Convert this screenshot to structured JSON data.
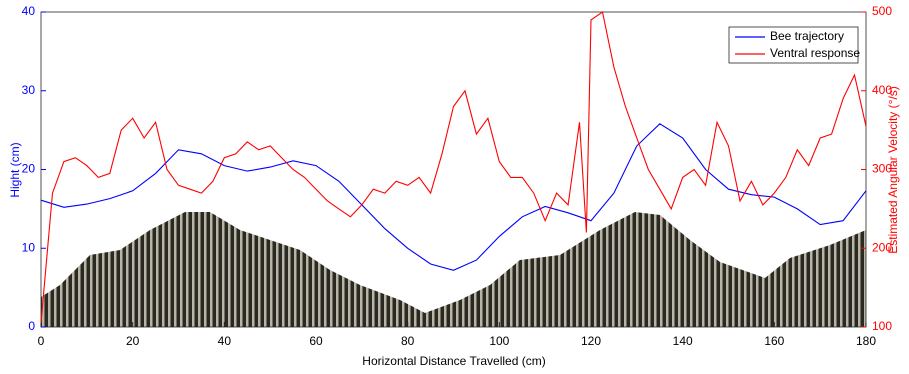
{
  "chart_data": {
    "type": "line",
    "xlabel": "Horizontal Distance Travelled (cm)",
    "ylabel": "Hight (cm)",
    "y2label": "Estimated Angular Velocity (°/s)",
    "xlim": [
      0,
      180
    ],
    "xticks": [
      0,
      20,
      40,
      60,
      80,
      100,
      120,
      140,
      160,
      180
    ],
    "ylim": [
      0,
      40
    ],
    "yticks": [
      0,
      10,
      20,
      30,
      40
    ],
    "y2lim": [
      100,
      500
    ],
    "y2ticks": [
      100,
      200,
      300,
      400,
      500
    ],
    "legend": "upper right",
    "series": [
      {
        "name": "Bee trajectory",
        "color": "#0000ff",
        "x": [
          0,
          5,
          10,
          15,
          20,
          25,
          30,
          35,
          40,
          45,
          50,
          55,
          60,
          65,
          70,
          75,
          80,
          85,
          90,
          95,
          100,
          105,
          110,
          115,
          120,
          125,
          130,
          135,
          140,
          145,
          150,
          155,
          160,
          165,
          170,
          175,
          180
        ],
        "values": [
          16.1,
          15.2,
          15.6,
          16.3,
          17.3,
          19.5,
          22.5,
          22,
          20.5,
          19.8,
          20.3,
          21.1,
          20.5,
          18.5,
          15.5,
          12.5,
          10,
          8,
          7.2,
          8.5,
          11.5,
          14,
          15.3,
          14.5,
          13.5,
          17,
          23,
          25.8,
          24,
          20,
          17.5,
          16.8,
          16.5,
          15,
          13,
          13.5,
          17.3
        ]
      },
      {
        "name": "Ventral response",
        "color": "#ff0000",
        "axis": "y2",
        "x": [
          0,
          2.5,
          5,
          7.5,
          10,
          12.5,
          15,
          17.5,
          20,
          22.5,
          25,
          27.5,
          30,
          32.5,
          35,
          37.5,
          40,
          42.5,
          45,
          47.5,
          50,
          52.5,
          55,
          57.5,
          60,
          62.5,
          65,
          67.5,
          70,
          72.5,
          75,
          77.5,
          80,
          82.5,
          85,
          87.5,
          90,
          92.5,
          95,
          97.5,
          100,
          102.5,
          105,
          107.5,
          110,
          112.5,
          115,
          117.5,
          119,
          120,
          122.5,
          125,
          127.5,
          130,
          132.5,
          135,
          137.5,
          140,
          142.5,
          145,
          147.5,
          150,
          152.5,
          155,
          157.5,
          160,
          162.5,
          165,
          167.5,
          170,
          172.5,
          175,
          177.5,
          180
        ],
        "values": [
          105,
          270,
          310,
          315,
          305,
          290,
          295,
          350,
          365,
          340,
          360,
          300,
          280,
          275,
          270,
          285,
          315,
          320,
          335,
          325,
          330,
          315,
          300,
          290,
          275,
          260,
          250,
          240,
          255,
          275,
          270,
          285,
          280,
          290,
          270,
          320,
          380,
          400,
          345,
          365,
          310,
          290,
          290,
          270,
          235,
          270,
          255,
          360,
          220,
          490,
          500,
          430,
          380,
          340,
          300,
          275,
          250,
          290,
          300,
          280,
          360,
          330,
          260,
          285,
          255,
          270,
          290,
          325,
          305,
          340,
          345,
          390,
          420,
          355
        ]
      }
    ]
  }
}
